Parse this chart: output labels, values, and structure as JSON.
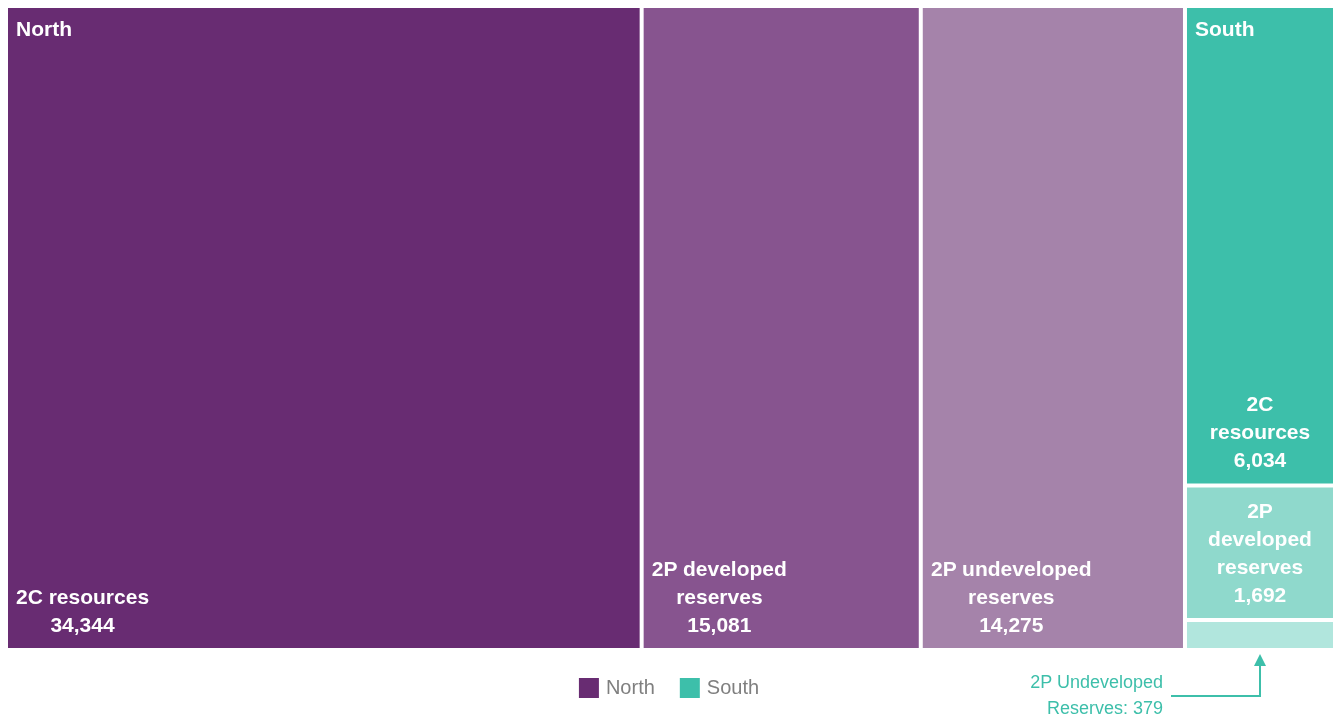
{
  "chart_data": {
    "type": "other",
    "categories": [
      "2C resources",
      "2P developed reserves",
      "2P undeveloped reserves"
    ],
    "series": [
      {
        "name": "North",
        "color": "#682c72",
        "colors": [
          "#682c72",
          "#87548f",
          "#a583aa"
        ],
        "values": [
          34344,
          15081,
          14275
        ],
        "value_labels": [
          "34,344",
          "15,081",
          "14,275"
        ]
      },
      {
        "name": "South",
        "color": "#3dbfaa",
        "colors": [
          "#3dbfaa",
          "#8fd9cc",
          "#b1e6dd"
        ],
        "values": [
          6034,
          1692,
          379
        ],
        "value_labels": [
          "6,034",
          "1,692",
          "2P Undeveloped Reserves: 379"
        ]
      }
    ],
    "legend": "bottom"
  }
}
